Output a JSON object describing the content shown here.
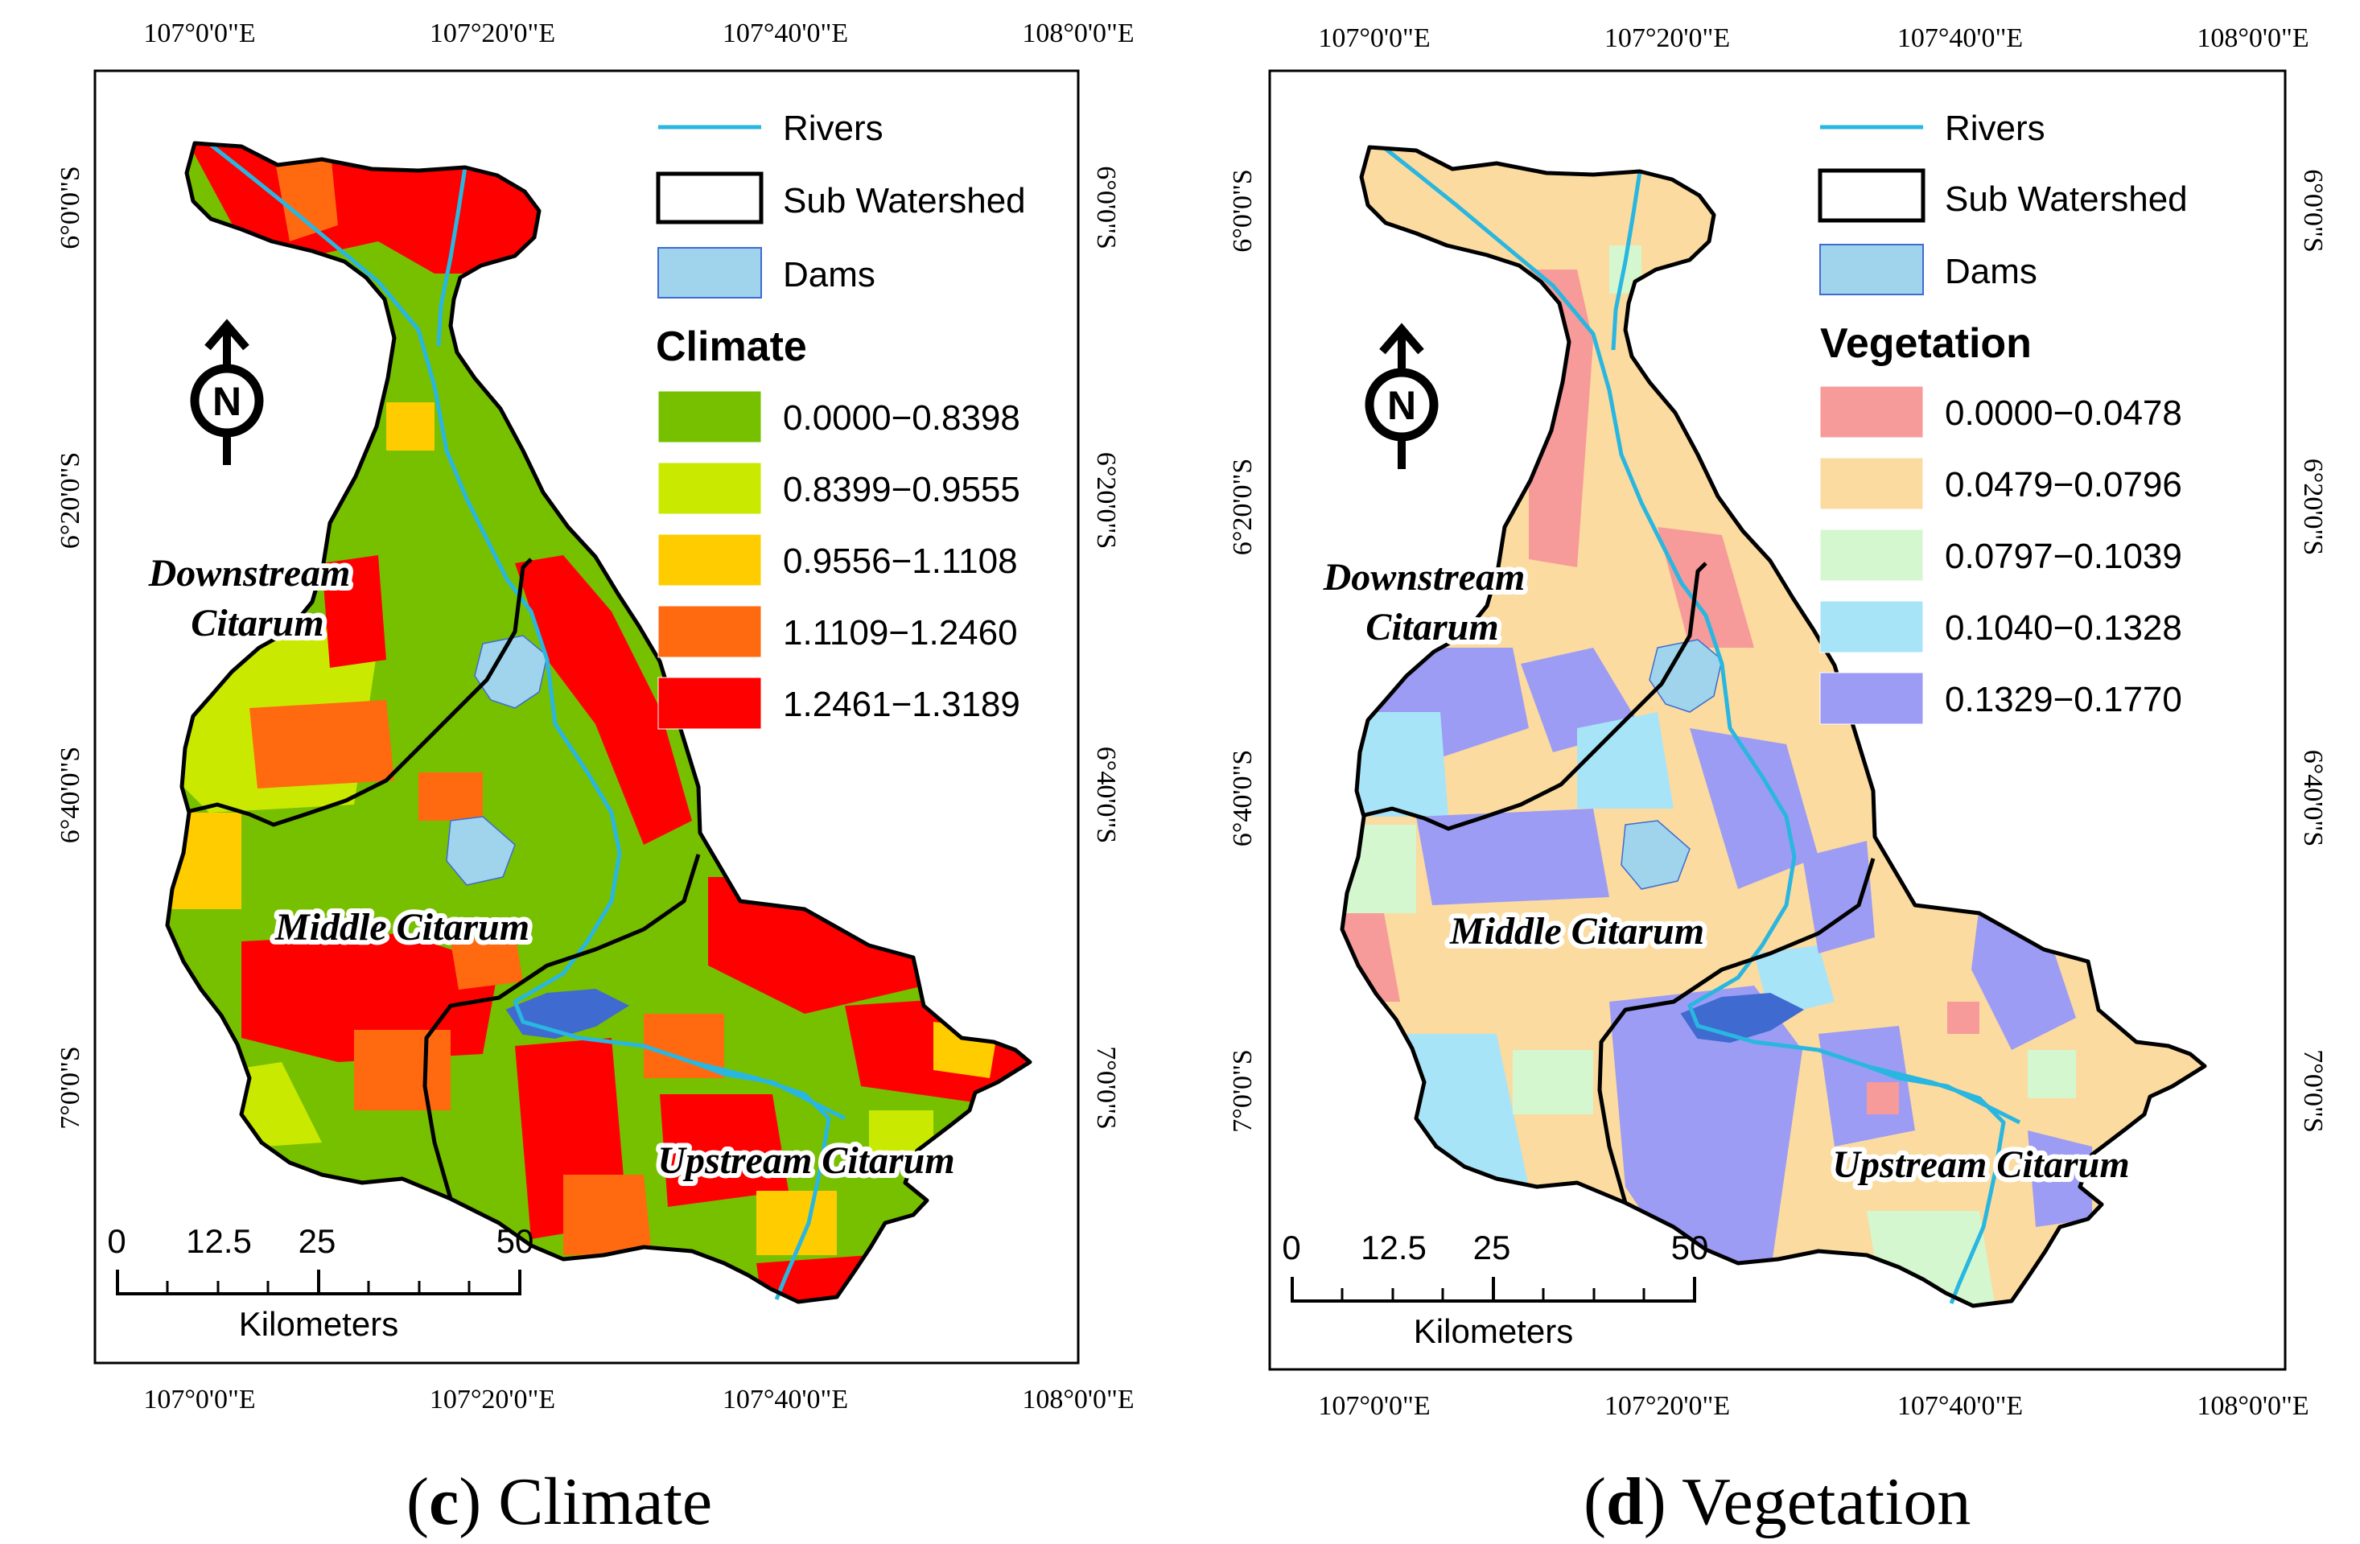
{
  "coordinates": {
    "lon_labels": [
      "107°0'0\"E",
      "107°20'0\"E",
      "107°40'0\"E",
      "108°0'0\"E"
    ],
    "lat_labels": [
      "6°0'0\"S",
      "6°20'0\"S",
      "6°40'0\"S",
      "7°0'0\"S"
    ]
  },
  "common_legend": {
    "rivers": "Rivers",
    "sub_watershed": "Sub Watershed",
    "dams": "Dams"
  },
  "regions": {
    "downstream_line1": "Downstream",
    "downstream_line2": "Citarum",
    "middle": "Middle Citarum",
    "upstream": "Upstream Citarum"
  },
  "scale_bar": {
    "ticks": [
      "0",
      "12.5",
      "25",
      "50"
    ],
    "unit": "Kilometers"
  },
  "north_arrow": "N",
  "colors": {
    "river": "#29b6e0",
    "dam": "#9fd4ec",
    "dam_lake": "#3f6bd1",
    "boundary": "#000000"
  },
  "panels": [
    {
      "caption_letter": "c",
      "caption_text": "Climate",
      "legend_title": "Climate",
      "classes": [
        {
          "label": "0.0000−0.8398",
          "color": "#76c000"
        },
        {
          "label": "0.8399−0.9555",
          "color": "#c9ea00"
        },
        {
          "label": "0.9556−1.1108",
          "color": "#ffcc00"
        },
        {
          "label": "1.1109−1.2460",
          "color": "#ff6a10"
        },
        {
          "label": "1.2461−1.3189",
          "color": "#ff0000"
        }
      ]
    },
    {
      "caption_letter": "d",
      "caption_text": "Vegetation",
      "legend_title": "Vegetation",
      "classes": [
        {
          "label": "0.0000−0.0478",
          "color": "#f79a9a"
        },
        {
          "label": "0.0479−0.0796",
          "color": "#fbdb9f"
        },
        {
          "label": "0.0797−0.1039",
          "color": "#d4f7d0"
        },
        {
          "label": "0.1040−0.1328",
          "color": "#a8e4f8"
        },
        {
          "label": "0.1329−0.1770",
          "color": "#9c9cf4"
        }
      ]
    }
  ]
}
